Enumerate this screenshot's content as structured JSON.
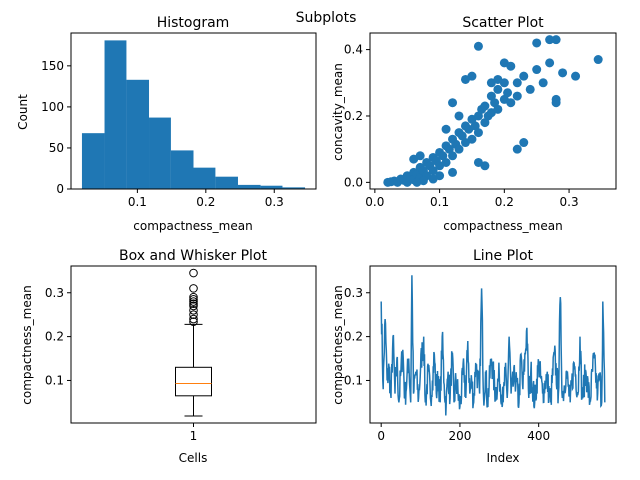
{
  "suptitle": "Subplots",
  "chart_data": [
    {
      "type": "bar",
      "subtype": "histogram",
      "title": "Histogram",
      "xlabel": "compactness_mean",
      "ylabel": "Count",
      "bins": [
        {
          "start": 0.019,
          "end": 0.052,
          "count": 68
        },
        {
          "start": 0.052,
          "end": 0.084,
          "count": 181
        },
        {
          "start": 0.084,
          "end": 0.117,
          "count": 133
        },
        {
          "start": 0.117,
          "end": 0.149,
          "count": 87
        },
        {
          "start": 0.149,
          "end": 0.182,
          "count": 47
        },
        {
          "start": 0.182,
          "end": 0.214,
          "count": 26
        },
        {
          "start": 0.214,
          "end": 0.247,
          "count": 15
        },
        {
          "start": 0.247,
          "end": 0.28,
          "count": 5
        },
        {
          "start": 0.28,
          "end": 0.312,
          "count": 4
        },
        {
          "start": 0.312,
          "end": 0.345,
          "count": 2
        }
      ],
      "xlim": [
        0.003,
        0.361
      ],
      "ylim": [
        0,
        190
      ],
      "xticks": [
        0.1,
        0.2,
        0.3
      ],
      "xticklabels": [
        "0.1",
        "0.2",
        "0.3"
      ],
      "yticks": [
        0,
        50,
        100,
        150
      ],
      "yticklabels": [
        "0",
        "50",
        "100",
        "150"
      ],
      "color": "#1f77b4"
    },
    {
      "type": "scatter",
      "title": "Scatter Plot",
      "xlabel": "compactness_mean",
      "ylabel": "concavity_mean",
      "points": [
        [
          0.02,
          0.0
        ],
        [
          0.025,
          0.002
        ],
        [
          0.03,
          0.004
        ],
        [
          0.035,
          0.0
        ],
        [
          0.04,
          0.01
        ],
        [
          0.045,
          0.006
        ],
        [
          0.05,
          0.02
        ],
        [
          0.05,
          0.0
        ],
        [
          0.055,
          0.014
        ],
        [
          0.06,
          0.03
        ],
        [
          0.06,
          0.008
        ],
        [
          0.065,
          0.025
        ],
        [
          0.07,
          0.045
        ],
        [
          0.07,
          0.015
        ],
        [
          0.075,
          0.035
        ],
        [
          0.08,
          0.06
        ],
        [
          0.08,
          0.02
        ],
        [
          0.085,
          0.05
        ],
        [
          0.09,
          0.075
        ],
        [
          0.09,
          0.035
        ],
        [
          0.095,
          0.065
        ],
        [
          0.1,
          0.09
        ],
        [
          0.1,
          0.05
        ],
        [
          0.105,
          0.08
        ],
        [
          0.11,
          0.11
        ],
        [
          0.11,
          0.06
        ],
        [
          0.115,
          0.1
        ],
        [
          0.12,
          0.13
        ],
        [
          0.12,
          0.08
        ],
        [
          0.125,
          0.115
        ],
        [
          0.13,
          0.15
        ],
        [
          0.13,
          0.1
        ],
        [
          0.135,
          0.14
        ],
        [
          0.14,
          0.17
        ],
        [
          0.14,
          0.12
        ],
        [
          0.145,
          0.16
        ],
        [
          0.15,
          0.19
        ],
        [
          0.15,
          0.13
        ],
        [
          0.155,
          0.17
        ],
        [
          0.16,
          0.2
        ],
        [
          0.16,
          0.15
        ],
        [
          0.165,
          0.22
        ],
        [
          0.17,
          0.23
        ],
        [
          0.17,
          0.18
        ],
        [
          0.175,
          0.2
        ],
        [
          0.18,
          0.26
        ],
        [
          0.18,
          0.21
        ],
        [
          0.185,
          0.24
        ],
        [
          0.19,
          0.28
        ],
        [
          0.19,
          0.22
        ],
        [
          0.2,
          0.3
        ],
        [
          0.2,
          0.25
        ],
        [
          0.205,
          0.27
        ],
        [
          0.21,
          0.24
        ],
        [
          0.22,
          0.3
        ],
        [
          0.22,
          0.26
        ],
        [
          0.23,
          0.32
        ],
        [
          0.24,
          0.28
        ],
        [
          0.25,
          0.34
        ],
        [
          0.26,
          0.3
        ],
        [
          0.27,
          0.36
        ],
        [
          0.28,
          0.25
        ],
        [
          0.28,
          0.24
        ],
        [
          0.29,
          0.33
        ],
        [
          0.31,
          0.32
        ],
        [
          0.345,
          0.37
        ],
        [
          0.16,
          0.41
        ],
        [
          0.15,
          0.32
        ],
        [
          0.14,
          0.31
        ],
        [
          0.28,
          0.43
        ],
        [
          0.27,
          0.43
        ],
        [
          0.25,
          0.42
        ],
        [
          0.2,
          0.36
        ],
        [
          0.21,
          0.35
        ],
        [
          0.12,
          0.24
        ],
        [
          0.23,
          0.12
        ],
        [
          0.22,
          0.1
        ],
        [
          0.16,
          0.06
        ],
        [
          0.17,
          0.05
        ],
        [
          0.1,
          0.02
        ],
        [
          0.12,
          0.03
        ],
        [
          0.09,
          0.01
        ],
        [
          0.065,
          0.0
        ],
        [
          0.075,
          0.005
        ],
        [
          0.11,
          0.16
        ],
        [
          0.13,
          0.2
        ],
        [
          0.18,
          0.3
        ],
        [
          0.19,
          0.31
        ],
        [
          0.06,
          0.07
        ],
        [
          0.07,
          0.08
        ]
      ],
      "xlim": [
        -0.0075,
        0.3725
      ],
      "ylim": [
        -0.02,
        0.45
      ],
      "xticks": [
        0.0,
        0.1,
        0.2,
        0.3
      ],
      "xticklabels": [
        "0.0",
        "0.1",
        "0.2",
        "0.3"
      ],
      "yticks": [
        0.0,
        0.2,
        0.4
      ],
      "yticklabels": [
        "0.0",
        "0.2",
        "0.4"
      ],
      "color": "#1f77b4"
    },
    {
      "type": "box",
      "title": "Box and Whisker Plot",
      "xlabel": "Cells",
      "ylabel": "compactness_mean",
      "category": "1",
      "whisker_low": 0.019,
      "q1": 0.065,
      "median": 0.093,
      "q3": 0.13,
      "whisker_high": 0.228,
      "outliers": [
        0.234,
        0.24,
        0.25,
        0.26,
        0.27,
        0.275,
        0.28,
        0.285,
        0.29,
        0.31,
        0.345
      ],
      "xlim": [
        0.5,
        1.5
      ],
      "ylim": [
        0.003,
        0.361
      ],
      "yticks": [
        0.1,
        0.2,
        0.3
      ],
      "yticklabels": [
        "0.1",
        "0.2",
        "0.3"
      ],
      "median_color": "#ff7f0e"
    },
    {
      "type": "line",
      "title": "Line Plot",
      "xlabel": "Index",
      "ylabel": "compactness_mean",
      "n_points": 569,
      "knots": [
        [
          0,
          0.28
        ],
        [
          5,
          0.08
        ],
        [
          10,
          0.24
        ],
        [
          15,
          0.1
        ],
        [
          20,
          0.13
        ],
        [
          25,
          0.06
        ],
        [
          30,
          0.2
        ],
        [
          35,
          0.07
        ],
        [
          40,
          0.15
        ],
        [
          45,
          0.05
        ],
        [
          50,
          0.12
        ],
        [
          55,
          0.17
        ],
        [
          60,
          0.06
        ],
        [
          65,
          0.1
        ],
        [
          70,
          0.15
        ],
        [
          75,
          0.05
        ],
        [
          78,
          0.34
        ],
        [
          82,
          0.07
        ],
        [
          88,
          0.12
        ],
        [
          95,
          0.06
        ],
        [
          100,
          0.13
        ],
        [
          108,
          0.2
        ],
        [
          112,
          0.05
        ],
        [
          120,
          0.12
        ],
        [
          125,
          0.06
        ],
        [
          130,
          0.1
        ],
        [
          135,
          0.16
        ],
        [
          140,
          0.07
        ],
        [
          145,
          0.11
        ],
        [
          150,
          0.05
        ],
        [
          155,
          0.2
        ],
        [
          160,
          0.09
        ],
        [
          165,
          0.04
        ],
        [
          170,
          0.12
        ],
        [
          175,
          0.06
        ],
        [
          180,
          0.16
        ],
        [
          185,
          0.05
        ],
        [
          190,
          0.1
        ],
        [
          200,
          0.04
        ],
        [
          210,
          0.13
        ],
        [
          215,
          0.06
        ],
        [
          220,
          0.19
        ],
        [
          225,
          0.07
        ],
        [
          230,
          0.1
        ],
        [
          235,
          0.05
        ],
        [
          240,
          0.14
        ],
        [
          250,
          0.07
        ],
        [
          255,
          0.31
        ],
        [
          260,
          0.06
        ],
        [
          265,
          0.12
        ],
        [
          270,
          0.05
        ],
        [
          280,
          0.15
        ],
        [
          290,
          0.07
        ],
        [
          300,
          0.11
        ],
        [
          310,
          0.05
        ],
        [
          315,
          0.12
        ],
        [
          320,
          0.06
        ],
        [
          325,
          0.2
        ],
        [
          330,
          0.07
        ],
        [
          340,
          0.11
        ],
        [
          350,
          0.05
        ],
        [
          355,
          0.16
        ],
        [
          360,
          0.08
        ],
        [
          370,
          0.22
        ],
        [
          375,
          0.06
        ],
        [
          380,
          0.12
        ],
        [
          390,
          0.05
        ],
        [
          400,
          0.14
        ],
        [
          410,
          0.07
        ],
        [
          420,
          0.11
        ],
        [
          430,
          0.05
        ],
        [
          440,
          0.16
        ],
        [
          450,
          0.07
        ],
        [
          455,
          0.29
        ],
        [
          460,
          0.06
        ],
        [
          470,
          0.12
        ],
        [
          480,
          0.05
        ],
        [
          490,
          0.14
        ],
        [
          500,
          0.07
        ],
        [
          505,
          0.2
        ],
        [
          510,
          0.06
        ],
        [
          520,
          0.12
        ],
        [
          530,
          0.05
        ],
        [
          540,
          0.15
        ],
        [
          550,
          0.07
        ],
        [
          555,
          0.11
        ],
        [
          560,
          0.05
        ],
        [
          563,
          0.28
        ],
        [
          568,
          0.05
        ]
      ],
      "xlim": [
        -28.4,
        596.4
      ],
      "ylim": [
        0.003,
        0.361
      ],
      "xticks": [
        0,
        200,
        400
      ],
      "xticklabels": [
        "0",
        "200",
        "400"
      ],
      "yticks": [
        0.1,
        0.2,
        0.3
      ],
      "yticklabels": [
        "0.1",
        "0.2",
        "0.3"
      ],
      "color": "#1f77b4"
    }
  ]
}
